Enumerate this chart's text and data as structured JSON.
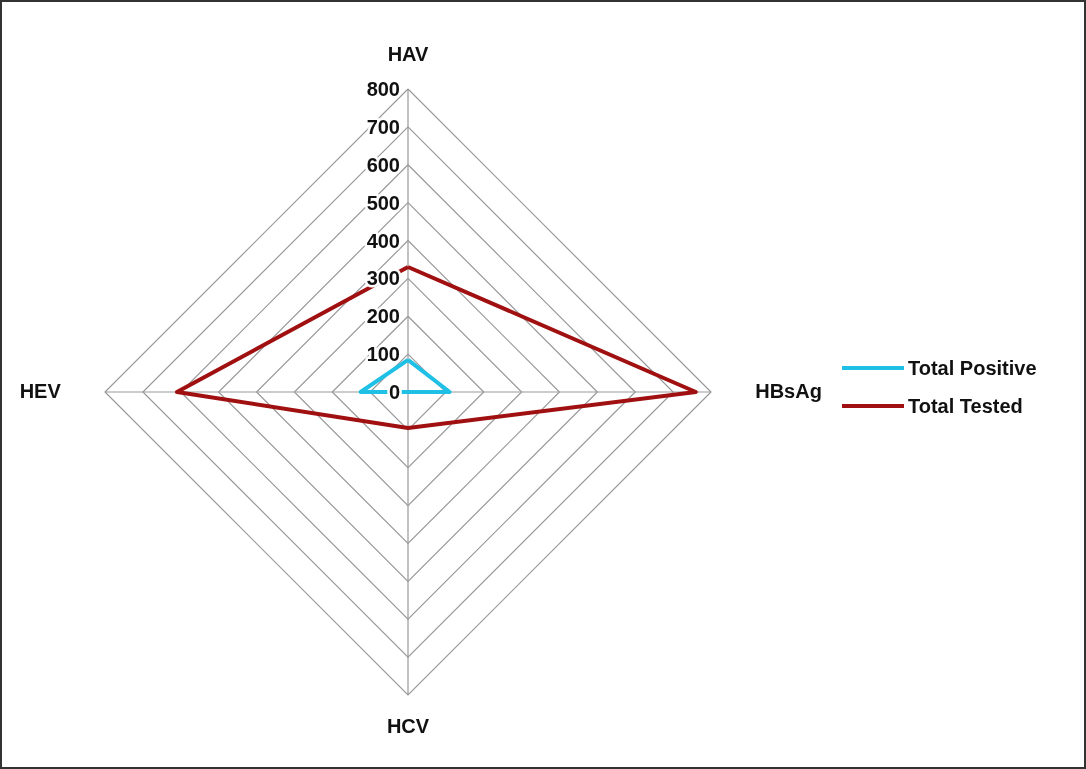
{
  "chart_data": {
    "type": "radar",
    "categories": [
      "HAV",
      "HBsAg",
      "HCV",
      "HEV"
    ],
    "series": [
      {
        "name": "Total Positive",
        "color": "#1fc0e6",
        "values": [
          85,
          110,
          0,
          125
        ]
      },
      {
        "name": "Total Tested",
        "color": "#a01010",
        "values": [
          330,
          760,
          95,
          610
        ]
      }
    ],
    "ylim": [
      0,
      800
    ],
    "yticks": [
      0,
      100,
      200,
      300,
      400,
      500,
      600,
      700,
      800
    ],
    "grid": true,
    "legend": "right",
    "marker": "none"
  }
}
